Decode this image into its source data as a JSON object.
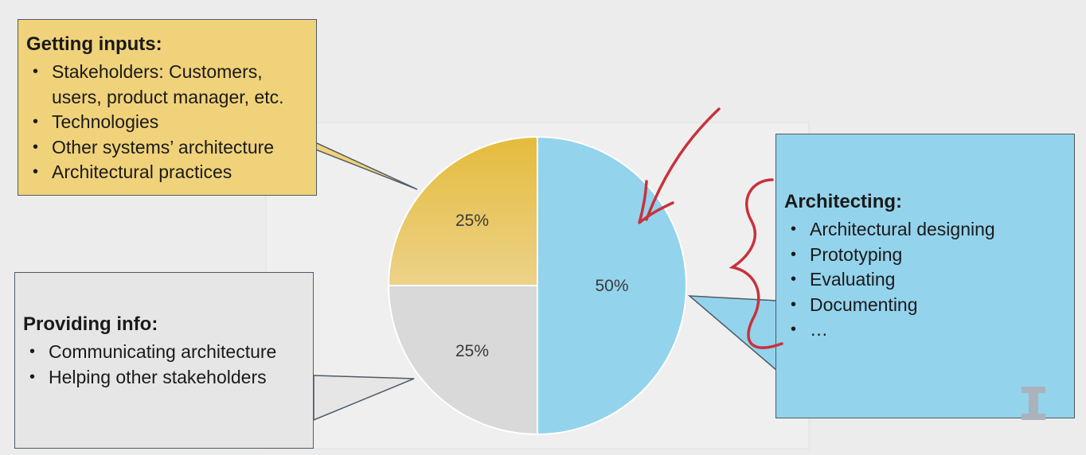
{
  "chart_data": {
    "type": "pie",
    "slices": [
      {
        "label": "Architecting",
        "value": 50,
        "data_label": "50%",
        "color": "#94d3ec"
      },
      {
        "label": "Providing info",
        "value": 25,
        "data_label": "25%",
        "color": "#d9d9d9"
      },
      {
        "label": "Getting inputs",
        "value": 25,
        "data_label": "25%",
        "color": "#e8c254"
      }
    ],
    "title": ""
  },
  "callouts": {
    "getting_inputs": {
      "title": "Getting inputs:",
      "items": [
        "Stakeholders: Customers, users, product manager, etc.",
        "Technologies",
        "Other systems’ architecture",
        "Architectural practices"
      ],
      "color": "#f0d27a"
    },
    "providing_info": {
      "title": "Providing info:",
      "items": [
        "Communicating architecture",
        "Helping other stakeholders"
      ],
      "color": "#e6e6e6"
    },
    "architecting": {
      "title": "Architecting:",
      "items": [
        "Architectural designing",
        "Prototyping",
        "Evaluating",
        "Documenting",
        "…"
      ],
      "color": "#94d3ec"
    }
  },
  "bullet_char": "•",
  "annotations": {
    "pen_color": "#c8323c",
    "marks": [
      "red-arrow",
      "red-curly-brace"
    ]
  },
  "logo": {
    "name": "illinois-i-logo",
    "color": "#aab2bb"
  }
}
